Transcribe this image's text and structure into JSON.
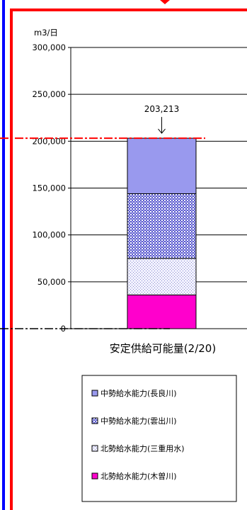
{
  "chart_data": {
    "type": "bar",
    "stacked": true,
    "unit_label": "m3/日",
    "categories": [
      "安定供給可能量(2/20)"
    ],
    "ylim": [
      0,
      300000
    ],
    "ytick_values": [
      0,
      50000,
      100000,
      150000,
      200000,
      250000,
      300000
    ],
    "ytick_labels": [
      "0",
      "50,000",
      "100,000",
      "150,000",
      "200,000",
      "250,000",
      "300,000"
    ],
    "grid": true,
    "total_label": "203,213",
    "series": [
      {
        "name": "北勢給水能力(木曽川)",
        "values": [
          36000
        ],
        "color": "#ff00cc",
        "pattern": "solid"
      },
      {
        "name": "北勢給水能力(三重用水)",
        "values": [
          39000
        ],
        "color": "#e8e8ff",
        "pattern": "dots"
      },
      {
        "name": "中勢給水能力(雲出川)",
        "values": [
          69000
        ],
        "color": "#7b7bd0",
        "pattern": "checker"
      },
      {
        "name": "中勢給水能力(長良川)",
        "values": [
          59213
        ],
        "color": "#9999ee",
        "pattern": "solid"
      }
    ],
    "legend_order": [
      3,
      2,
      1,
      0
    ],
    "legend_position": "bottom",
    "colors": {
      "border_red": "#ff0000",
      "border_blue": "#0000ff",
      "reference_line": "#ff0000"
    }
  }
}
